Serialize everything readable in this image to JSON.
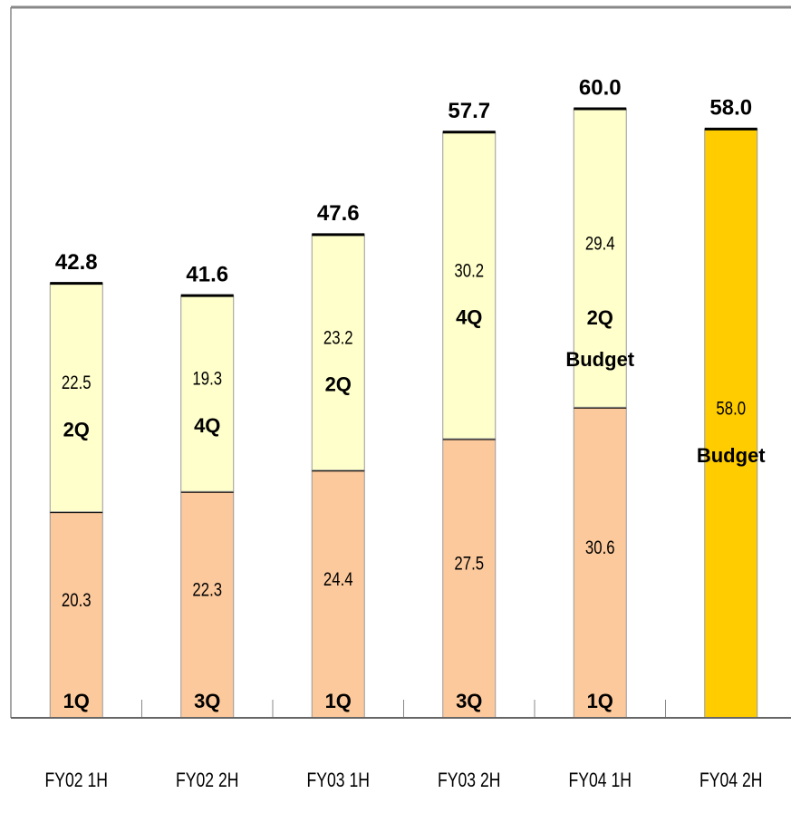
{
  "chart_data": {
    "type": "stacked-bar",
    "categories": [
      "FY02  1H",
      "FY02  2H",
      "FY03  1H",
      "FY03  2H",
      "FY04 1H",
      "FY04 2H"
    ],
    "series": [
      {
        "color": "#fcc99c",
        "values": [
          20.3,
          22.3,
          24.4,
          27.5,
          30.6,
          null
        ],
        "quarter_labels": [
          [
            "1Q"
          ],
          [
            "3Q"
          ],
          [
            "1Q"
          ],
          [
            "3Q"
          ],
          [
            "1Q"
          ],
          null
        ]
      },
      {
        "color": "#ffffcc",
        "values": [
          22.5,
          19.3,
          23.2,
          30.2,
          29.4,
          null
        ],
        "quarter_labels": [
          [
            "2Q"
          ],
          [
            "4Q"
          ],
          [
            "2Q"
          ],
          [
            "4Q"
          ],
          [
            "2Q",
            "Budget"
          ],
          null
        ]
      },
      {
        "color": "#ffcc00",
        "values": [
          null,
          null,
          null,
          null,
          null,
          58.0
        ],
        "value_labels": [
          null,
          null,
          null,
          null,
          null,
          "58.0"
        ],
        "quarter_labels": [
          null,
          null,
          null,
          null,
          null,
          [
            "Budget"
          ]
        ]
      }
    ],
    "totals": [
      42.8,
      41.6,
      47.6,
      57.7,
      60.0,
      58.0
    ],
    "total_labels": [
      "42.8",
      "41.6",
      "47.6",
      "57.7",
      "60.0",
      "58.0"
    ],
    "ylim": [
      0,
      70
    ]
  }
}
